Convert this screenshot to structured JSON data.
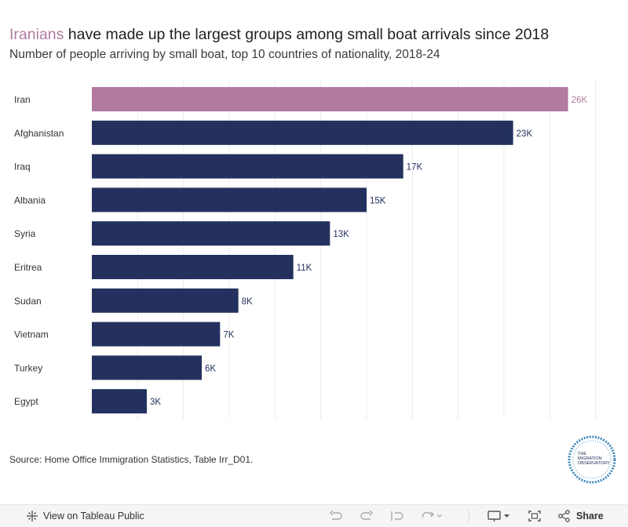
{
  "header": {
    "title_highlight": "Iranians",
    "title_rest": " have made up the largest groups among small boat arrivals since 2018",
    "subtitle": "Number of people arriving by small boat, top 10 countries of nationality, 2018-24"
  },
  "chart_data": {
    "type": "bar",
    "orientation": "horizontal",
    "categories": [
      "Iran",
      "Afghanistan",
      "Iraq",
      "Albania",
      "Syria",
      "Eritrea",
      "Sudan",
      "Vietnam",
      "Turkey",
      "Egypt"
    ],
    "values": [
      26000,
      23000,
      17000,
      15000,
      13000,
      11000,
      8000,
      7000,
      6000,
      3000
    ],
    "labels": [
      "26K",
      "23K",
      "17K",
      "15K",
      "13K",
      "11K",
      "8K",
      "7K",
      "6K",
      "3K"
    ],
    "highlight_category": "Iran",
    "colors": {
      "highlight": "#b07aa1",
      "default": "#24315e",
      "gridline": "#ececec"
    },
    "xlim": [
      0,
      28500
    ],
    "grid": "vertical"
  },
  "footer": {
    "source": "Source: Home Office Immigration Statistics, Table Irr_D01."
  },
  "logo": {
    "line1": "THE",
    "line2": "MIGRATION",
    "line3": "OBSERVATORY"
  },
  "toolbar": {
    "view_label": "View on Tableau Public",
    "share_label": "Share",
    "icons": [
      "tableau-icon",
      "undo-icon",
      "redo-icon",
      "revert-icon",
      "refresh-icon",
      "download-icon",
      "fullscreen-icon",
      "share-icon"
    ]
  }
}
